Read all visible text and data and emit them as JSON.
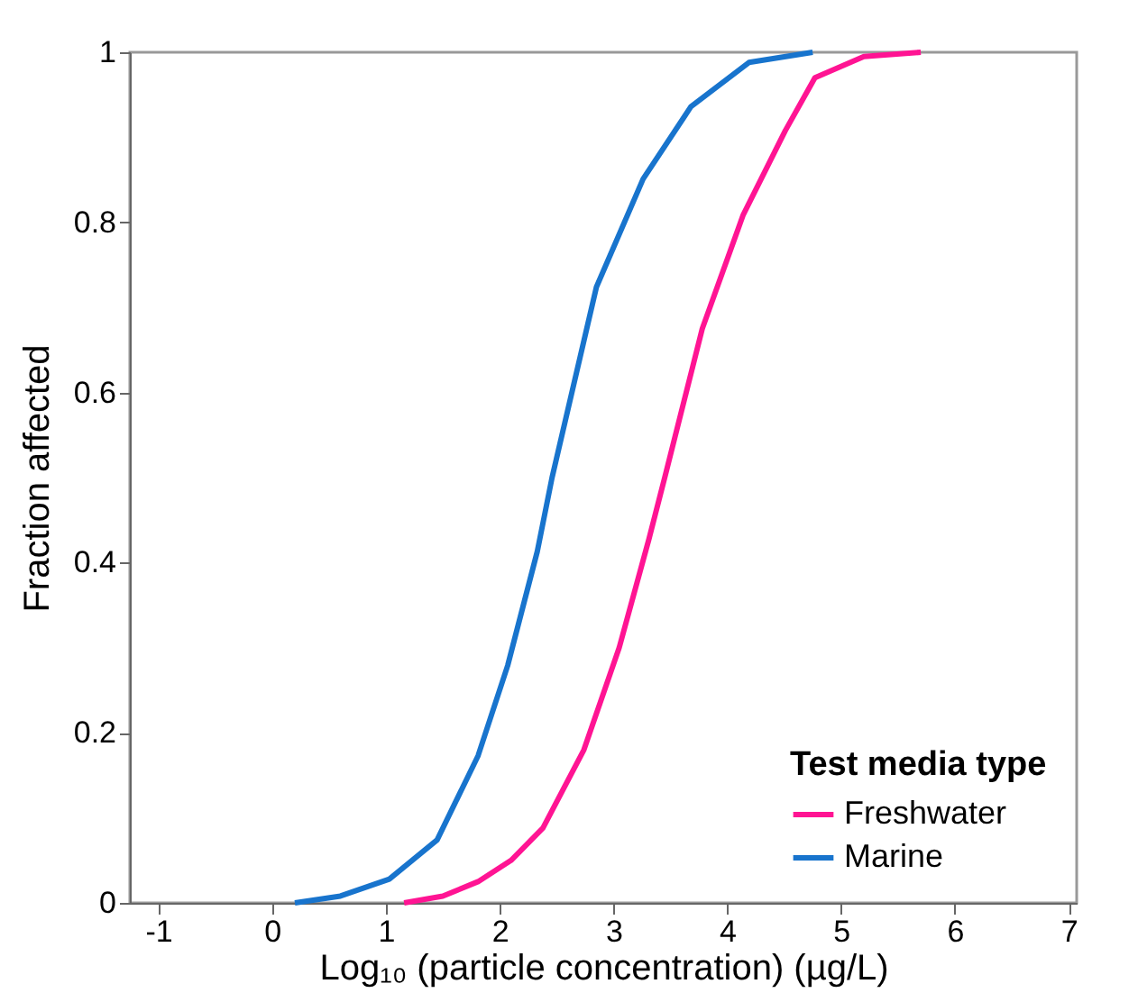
{
  "chart_data": {
    "type": "line",
    "xlabel": "Log₁₀ (particle concentration) (µg/L)",
    "ylabel": "Fraction affected",
    "legend_title": "Test media type",
    "xlim": [
      -1.25,
      7.07
    ],
    "ylim": [
      0,
      1
    ],
    "xticks": [
      -1,
      0,
      1,
      2,
      3,
      4,
      5,
      6,
      7
    ],
    "yticks": [
      0,
      0.2,
      0.4,
      0.6,
      0.8,
      1
    ],
    "grid": false,
    "legend": "bottom right",
    "marker": "none",
    "line_style": "solid",
    "series": [
      {
        "name": "Freshwater",
        "color": "#ff1493",
        "x": [
          1.16,
          1.5,
          1.81,
          2.1,
          2.38,
          2.74,
          3.05,
          3.31,
          3.45,
          3.78,
          4.14,
          4.51,
          4.77,
          5.2,
          5.7
        ],
        "values": [
          0,
          0.008,
          0.025,
          0.05,
          0.088,
          0.18,
          0.3,
          0.427,
          0.5,
          0.675,
          0.809,
          0.908,
          0.97,
          0.995,
          1
        ]
      },
      {
        "name": "Marine",
        "color": "#1874cd",
        "x": [
          0.2,
          0.6,
          1.03,
          1.45,
          1.81,
          2.07,
          2.33,
          2.46,
          2.85,
          3.26,
          3.68,
          4.19,
          4.75
        ],
        "values": [
          0,
          0.008,
          0.028,
          0.074,
          0.173,
          0.279,
          0.413,
          0.5,
          0.724,
          0.851,
          0.936,
          0.988,
          1
        ]
      }
    ]
  }
}
